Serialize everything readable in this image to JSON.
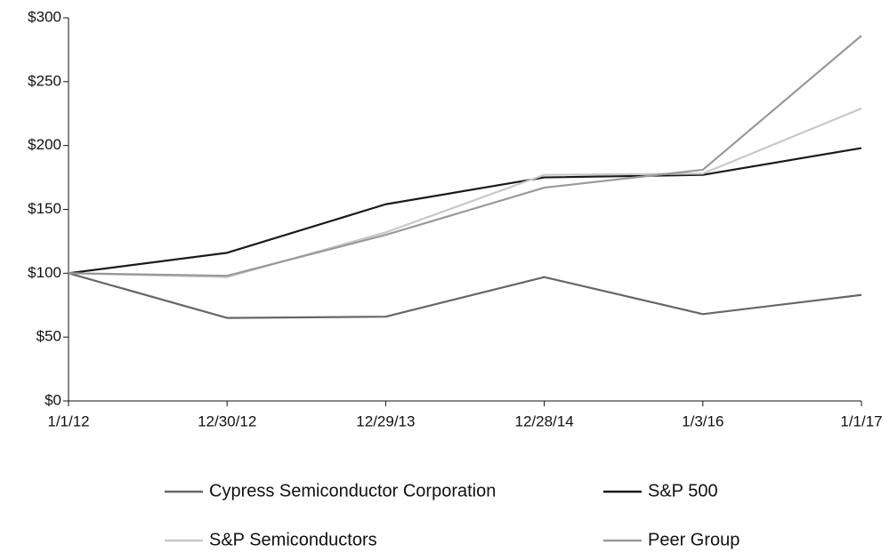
{
  "chart_data": {
    "type": "line",
    "categories": [
      "1/1/12",
      "12/30/12",
      "12/29/13",
      "12/28/14",
      "1/3/16",
      "1/1/17"
    ],
    "series": [
      {
        "name": "Cypress Semiconductor Corporation",
        "color": "#666666",
        "values": [
          100,
          65,
          66,
          97,
          68,
          83
        ]
      },
      {
        "name": "S&P 500",
        "color": "#1a1a1a",
        "values": [
          100,
          116,
          154,
          175,
          177,
          198
        ]
      },
      {
        "name": "S&P Semiconductors",
        "color": "#c8c8c8",
        "values": [
          100,
          97,
          132,
          177,
          178,
          229
        ]
      },
      {
        "name": "Peer Group",
        "color": "#999999",
        "values": [
          100,
          98,
          130,
          167,
          181,
          286
        ]
      }
    ],
    "ylim": [
      0,
      300
    ],
    "yticks": [
      {
        "value": 0,
        "label": "$0"
      },
      {
        "value": 50,
        "label": "$50"
      },
      {
        "value": 100,
        "label": "$100"
      },
      {
        "value": 150,
        "label": "$150"
      },
      {
        "value": 200,
        "label": "$200"
      },
      {
        "value": 250,
        "label": "$250"
      },
      {
        "value": 300,
        "label": "$300"
      }
    ],
    "grid": false,
    "legend": "bottom"
  }
}
